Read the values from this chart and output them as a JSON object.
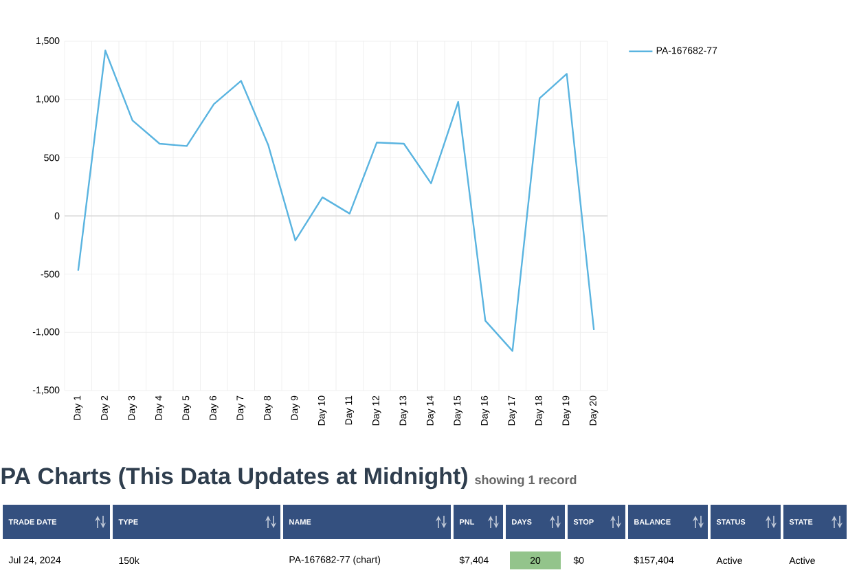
{
  "chart_data": {
    "type": "line",
    "categories": [
      "Day 1",
      "Day 2",
      "Day 3",
      "Day 4",
      "Day 5",
      "Day 6",
      "Day 7",
      "Day 8",
      "Day 9",
      "Day 10",
      "Day 11",
      "Day 12",
      "Day 13",
      "Day 14",
      "Day 15",
      "Day 16",
      "Day 17",
      "Day 18",
      "Day 19",
      "Day 20"
    ],
    "series": [
      {
        "name": "PA-167682-77",
        "color": "#5ab4e0",
        "values": [
          -470,
          1420,
          820,
          620,
          600,
          960,
          1160,
          610,
          -210,
          160,
          20,
          630,
          620,
          280,
          980,
          -900,
          -1160,
          1010,
          1220,
          -980
        ]
      }
    ],
    "ylim": [
      -1500,
      1500
    ],
    "yticks": [
      {
        "value": -1500,
        "label": "-1,500"
      },
      {
        "value": -1000,
        "label": "-1,000"
      },
      {
        "value": -500,
        "label": "-500"
      },
      {
        "value": 0,
        "label": "0"
      },
      {
        "value": 500,
        "label": "500"
      },
      {
        "value": 1000,
        "label": "1,000"
      },
      {
        "value": 1500,
        "label": "1,500"
      }
    ],
    "grid": true,
    "legend": "top right",
    "marker": "none",
    "line_style": "solid",
    "annotations": [
      "PA Charts (This Data Updates at Midnight)",
      "showing 1 record",
      "TRADE DATE",
      "TYPE",
      "NAME",
      "PNL",
      "DAYS",
      "STOP",
      "BALANCE",
      "STATUS",
      "STATE",
      "Jul 24, 2024",
      "150k",
      "PA-167682-77 (chart)",
      "$7,404",
      "20",
      "$0",
      "$157,404",
      "Active",
      "Active"
    ]
  }
}
